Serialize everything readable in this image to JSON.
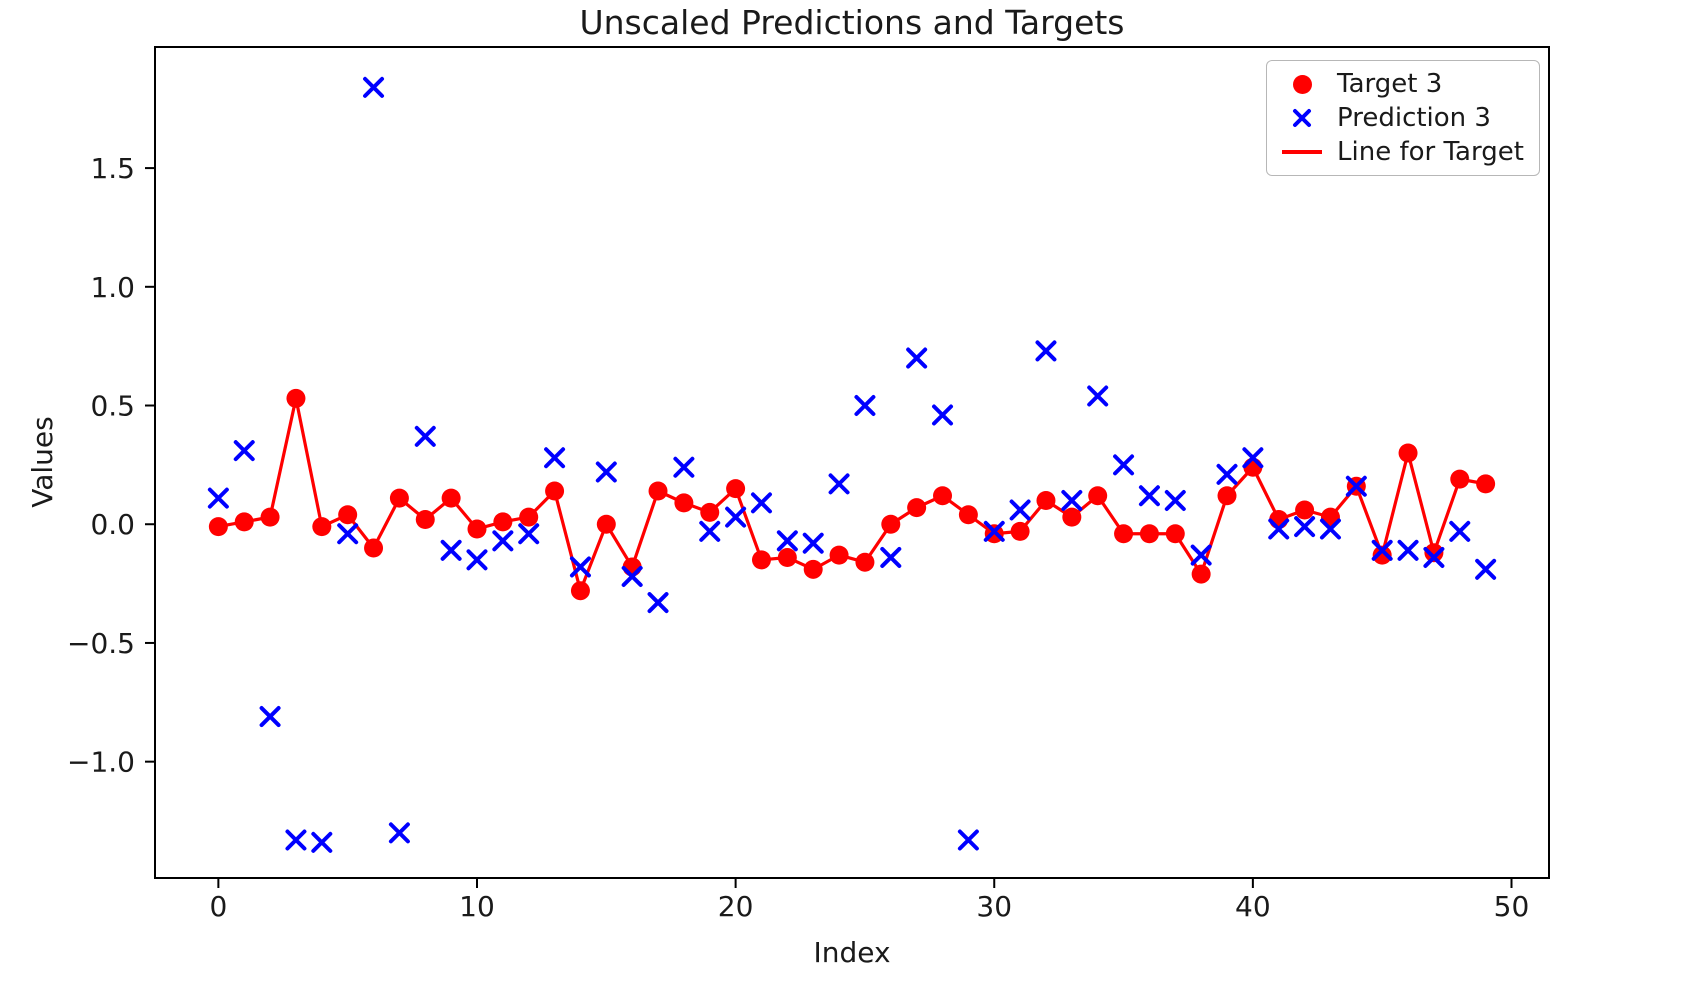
{
  "chart_data": {
    "type": "line+scatter",
    "title": "Unscaled Predictions and Targets",
    "xlabel": "Index",
    "ylabel": "Values",
    "xlim": [
      -2.45,
      51.45
    ],
    "ylim": [
      -1.49,
      2.01
    ],
    "xticks": [
      0,
      10,
      20,
      30,
      40,
      50
    ],
    "xtick_labels": [
      "0",
      "10",
      "20",
      "30",
      "40",
      "50"
    ],
    "yticks": [
      -1.0,
      -0.5,
      0.0,
      0.5,
      1.0,
      1.5
    ],
    "ytick_labels": [
      "−1.0",
      "−0.5",
      "0.0",
      "0.5",
      "1.0",
      "1.5"
    ],
    "grid": false,
    "colors": {
      "target": "#ff0000",
      "prediction": "#0000ff"
    },
    "x": [
      0,
      1,
      2,
      3,
      4,
      5,
      6,
      7,
      8,
      9,
      10,
      11,
      12,
      13,
      14,
      15,
      16,
      17,
      18,
      19,
      20,
      21,
      22,
      23,
      24,
      25,
      26,
      27,
      28,
      29,
      30,
      31,
      32,
      33,
      34,
      35,
      36,
      37,
      38,
      39,
      40,
      41,
      42,
      43,
      44,
      45,
      46,
      47,
      48,
      49
    ],
    "series": [
      {
        "name": "Target 3",
        "type": "scatter",
        "marker": "circle",
        "color": "#ff0000",
        "values": [
          -0.01,
          0.01,
          0.03,
          0.53,
          -0.01,
          0.04,
          -0.1,
          0.11,
          0.02,
          0.11,
          -0.02,
          0.01,
          0.03,
          0.14,
          -0.28,
          0.0,
          -0.18,
          0.14,
          0.09,
          0.05,
          0.15,
          -0.15,
          -0.14,
          -0.19,
          -0.13,
          -0.16,
          0.0,
          0.07,
          0.12,
          0.04,
          -0.04,
          -0.03,
          0.1,
          0.03,
          0.12,
          -0.04,
          -0.04,
          -0.04,
          -0.21,
          0.12,
          0.24,
          0.02,
          0.06,
          0.03,
          0.16,
          -0.13,
          0.3,
          -0.12,
          0.19,
          0.17
        ]
      },
      {
        "name": "Prediction 3",
        "type": "scatter",
        "marker": "x",
        "color": "#0000ff",
        "values": [
          0.11,
          0.31,
          -0.81,
          -1.33,
          -1.34,
          -0.04,
          1.84,
          -1.3,
          0.37,
          -0.11,
          -0.15,
          -0.07,
          -0.04,
          0.28,
          -0.18,
          0.22,
          -0.22,
          -0.33,
          0.24,
          -0.03,
          0.03,
          0.09,
          -0.07,
          -0.08,
          0.17,
          0.5,
          -0.14,
          0.7,
          0.46,
          -1.33,
          -0.03,
          0.06,
          0.73,
          0.1,
          0.54,
          0.25,
          0.12,
          0.1,
          -0.13,
          0.21,
          0.28,
          -0.02,
          -0.01,
          -0.02,
          0.16,
          -0.11,
          -0.11,
          -0.14,
          -0.03,
          -0.19
        ]
      },
      {
        "name": "Line for Target",
        "type": "line",
        "color": "#ff0000",
        "values_from": "Target 3"
      }
    ],
    "legend": {
      "position": "upper right",
      "entries": [
        {
          "label": "Target 3",
          "marker": "circle",
          "color": "#ff0000"
        },
        {
          "label": "Prediction 3",
          "marker": "x",
          "color": "#0000ff"
        },
        {
          "label": "Line for Target",
          "marker": "line",
          "color": "#ff0000"
        }
      ]
    }
  }
}
